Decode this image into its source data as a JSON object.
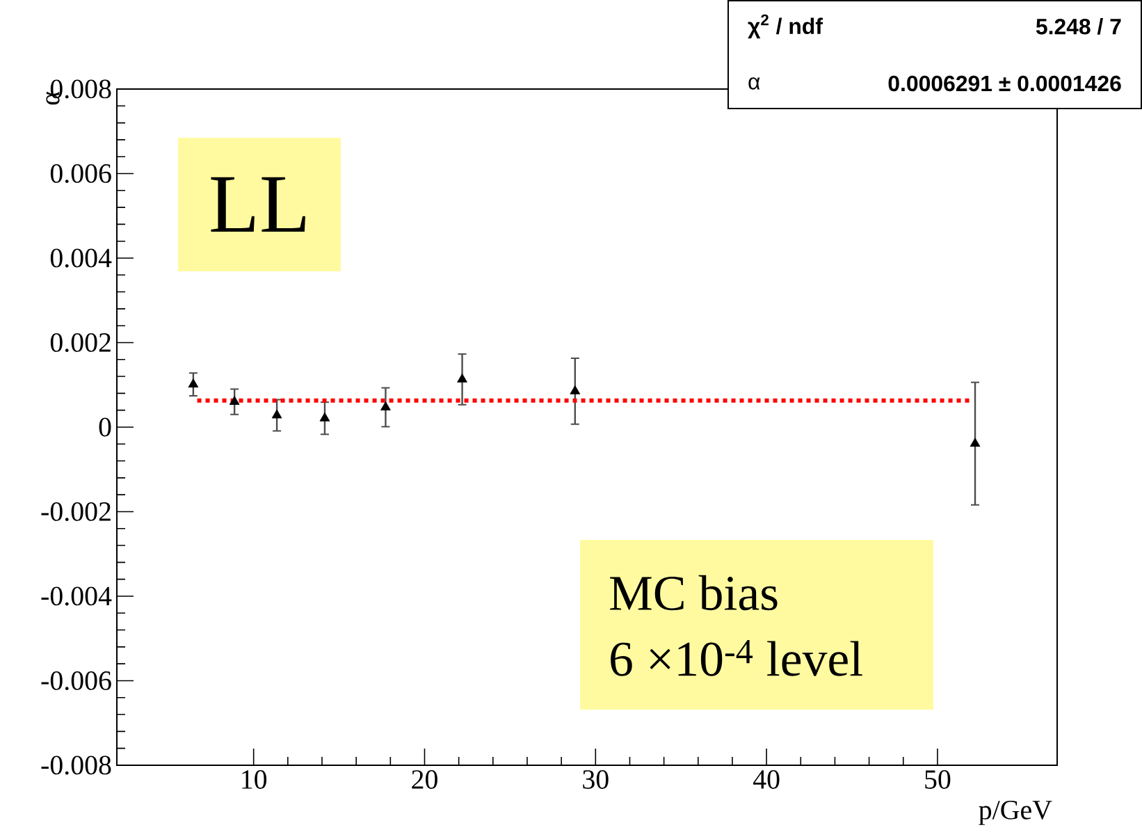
{
  "chart_data": {
    "type": "scatter",
    "xlabel": "p/GeV",
    "ylabel": "α",
    "xlim": [
      2,
      57
    ],
    "xticks": [
      10,
      20,
      30,
      40,
      50
    ],
    "ylim": [
      -0.008,
      0.008
    ],
    "yticks": [
      -0.008,
      -0.006,
      -0.004,
      -0.002,
      0,
      0.002,
      0.004,
      0.006,
      0.008
    ],
    "grid": false,
    "marker": "triangle",
    "series": [
      {
        "color": "#000000",
        "x": [
          6.47,
          8.88,
          11.36,
          14.16,
          17.72,
          22.2,
          28.8,
          52.2
        ],
        "values": [
          0.00101,
          0.0006,
          0.00028,
          0.00021,
          0.00047,
          0.00113,
          0.00085,
          -0.00039
        ],
        "errors": [
          0.00027,
          0.0003,
          0.00037,
          0.00038,
          0.00046,
          0.0006,
          0.00078,
          0.00145
        ]
      },
      {
        "type": "line",
        "color": "#ff0000",
        "line_style": "dotted",
        "marker": "none",
        "x": [
          6.7,
          51.9
        ],
        "values": [
          0.0006291,
          0.0006291
        ]
      }
    ],
    "annotations": [
      "LL",
      "MC bias",
      "6 ×10$^{-4}$ level",
      "χ$^{2}$ / ndf",
      "5.248 / 7",
      "α",
      "0.0006291 ± 0.0001426"
    ]
  }
}
